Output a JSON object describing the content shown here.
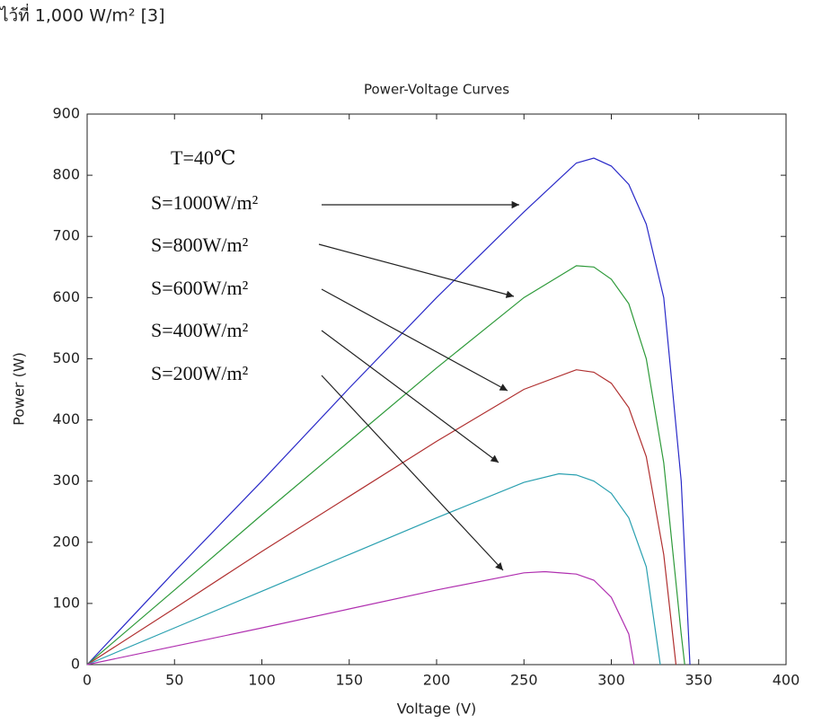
{
  "caption_fragment": "ไว้ที่ 1,000 W/m² [3]",
  "chart_data": {
    "type": "line",
    "title": "Power-Voltage Curves",
    "x_label": "Voltage (V)",
    "y_label": "Power (W)",
    "annotation": "T=40℃",
    "xlim": [
      0,
      400
    ],
    "xticks": [
      0,
      50,
      100,
      150,
      200,
      250,
      300,
      350,
      400
    ],
    "ylim": [
      0,
      900
    ],
    "yticks": [
      0,
      100,
      200,
      300,
      400,
      500,
      600,
      700,
      800,
      900
    ],
    "grid": false,
    "series": [
      {
        "name": "S=1000W/m²",
        "color": "#2a2ac8",
        "x": [
          0,
          50,
          100,
          150,
          200,
          250,
          280,
          290,
          300,
          310,
          320,
          330,
          340,
          345
        ],
        "values": [
          0,
          152,
          300,
          452,
          600,
          740,
          820,
          828,
          815,
          785,
          720,
          600,
          300,
          0
        ]
      },
      {
        "name": "S=800W/m²",
        "color": "#2e9a3a",
        "x": [
          0,
          50,
          100,
          150,
          200,
          250,
          280,
          290,
          300,
          310,
          320,
          330,
          340,
          342
        ],
        "values": [
          0,
          122,
          245,
          365,
          485,
          600,
          652,
          650,
          630,
          590,
          500,
          330,
          50,
          0
        ]
      },
      {
        "name": "S=600W/m²",
        "color": "#b03030",
        "x": [
          0,
          50,
          100,
          150,
          200,
          250,
          280,
          290,
          300,
          310,
          320,
          330,
          337
        ],
        "values": [
          0,
          92,
          185,
          275,
          365,
          450,
          482,
          478,
          460,
          420,
          340,
          180,
          0
        ]
      },
      {
        "name": "S=400W/m²",
        "color": "#2aa0b0",
        "x": [
          0,
          50,
          100,
          150,
          200,
          250,
          270,
          280,
          290,
          300,
          310,
          320,
          328
        ],
        "values": [
          0,
          60,
          120,
          180,
          240,
          298,
          312,
          310,
          300,
          280,
          240,
          160,
          0
        ]
      },
      {
        "name": "S=200W/m²",
        "color": "#b030b0",
        "x": [
          0,
          50,
          100,
          150,
          200,
          250,
          262,
          280,
          290,
          300,
          310,
          313
        ],
        "values": [
          0,
          30,
          60,
          91,
          122,
          150,
          152,
          148,
          138,
          110,
          50,
          0
        ]
      }
    ]
  }
}
